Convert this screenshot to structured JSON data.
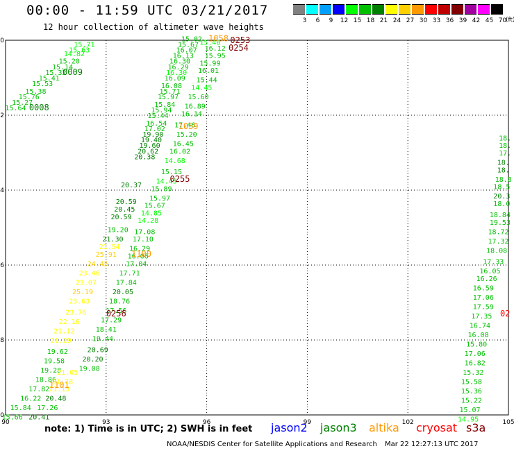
{
  "header": {
    "title": "00:00 - 11:59 UTC 03/21/2017",
    "subtitle": "12 hour collection of altimeter wave heights"
  },
  "color_scale": {
    "unit": "(ft)",
    "bins": [
      {
        "label": "3",
        "color": "#808080"
      },
      {
        "label": "6",
        "color": "#00ffff"
      },
      {
        "label": "9",
        "color": "#00a0ff"
      },
      {
        "label": "12",
        "color": "#0000ff"
      },
      {
        "label": "15",
        "color": "#00ff00"
      },
      {
        "label": "18",
        "color": "#00c000"
      },
      {
        "label": "21",
        "color": "#008000"
      },
      {
        "label": "24",
        "color": "#ffff00"
      },
      {
        "label": "27",
        "color": "#ffd000"
      },
      {
        "label": "30",
        "color": "#ff9900"
      },
      {
        "label": "33",
        "color": "#ff0000"
      },
      {
        "label": "36",
        "color": "#c00000"
      },
      {
        "label": "39",
        "color": "#800000"
      },
      {
        "label": "42",
        "color": "#a000a0"
      },
      {
        "label": "45",
        "color": "#ff00ff"
      },
      {
        "label": "70",
        "color": "#000000"
      }
    ]
  },
  "footer": {
    "note": "note:  1) Time is in UTC; 2) SWH is in feet",
    "credit": "NOAA/NESDIS Center for Satellite Applications and Research",
    "timestamp": "Mar 22 12:27:13 UTC 2017",
    "legend": [
      {
        "name": "jason2",
        "color": "#0000ff"
      },
      {
        "name": "jason3",
        "color": "#008000"
      },
      {
        "name": "altika",
        "color": "#ff9900"
      },
      {
        "name": "cryosat",
        "color": "#ff0000"
      },
      {
        "name": "s3a",
        "color": "#800000"
      }
    ]
  },
  "chart_data": {
    "type": "scatter",
    "xlim": [
      90,
      105
    ],
    "ylim": [
      -60,
      -50
    ],
    "x_ticks": [
      "90",
      "93",
      "96",
      "99",
      "102",
      "105"
    ],
    "y_ticks": [
      "-50",
      "-52",
      "-54",
      "-56",
      "-58",
      "-60"
    ],
    "grid": true,
    "pass_labels": [
      {
        "text": "0009",
        "x": 92.0,
        "y": -50.85,
        "color": "#008000"
      },
      {
        "text": "0008",
        "x": 91.0,
        "y": -51.8,
        "color": "#008000"
      },
      {
        "text": "1058",
        "x": 96.35,
        "y": -49.95,
        "color": "#ff9900"
      },
      {
        "text": "0253",
        "x": 97.0,
        "y": -50.0,
        "color": "#800000"
      },
      {
        "text": "0254",
        "x": 96.95,
        "y": -50.2,
        "color": "#800000"
      },
      {
        "text": "1059",
        "x": 95.45,
        "y": -52.3,
        "color": "#ff9900"
      },
      {
        "text": "0255",
        "x": 95.2,
        "y": -53.7,
        "color": "#800000"
      },
      {
        "text": "1100",
        "x": 94.05,
        "y": -55.7,
        "color": "#ff9900"
      },
      {
        "text": "0256",
        "x": 93.3,
        "y": -57.3,
        "color": "#800000"
      },
      {
        "text": "1101",
        "x": 91.6,
        "y": -59.2,
        "color": "#ff9900"
      },
      {
        "text": "02",
        "x": 104.9,
        "y": -57.3,
        "color": "#ff0000"
      }
    ],
    "points": [
      {
        "x": 92.35,
        "y": -50.1,
        "label": "15.71",
        "color": "#00ff00"
      },
      {
        "x": 92.2,
        "y": -50.25,
        "label": "15.63",
        "color": "#00ff00"
      },
      {
        "x": 92.05,
        "y": -50.35,
        "label": "14.82",
        "color": "#00ff00"
      },
      {
        "x": 91.9,
        "y": -50.55,
        "label": "15.20",
        "color": "#00c000"
      },
      {
        "x": 91.7,
        "y": -50.7,
        "label": "15.14",
        "color": "#00c000"
      },
      {
        "x": 91.5,
        "y": -50.85,
        "label": "15.32",
        "color": "#00c000"
      },
      {
        "x": 91.3,
        "y": -51.0,
        "label": "15.41",
        "color": "#00c000"
      },
      {
        "x": 91.1,
        "y": -51.15,
        "label": "15.53",
        "color": "#00c000"
      },
      {
        "x": 90.9,
        "y": -51.35,
        "label": "15.38",
        "color": "#00c000"
      },
      {
        "x": 90.7,
        "y": -51.5,
        "label": "15.76",
        "color": "#00c000"
      },
      {
        "x": 90.5,
        "y": -51.65,
        "label": "15.27",
        "color": "#00c000"
      },
      {
        "x": 90.3,
        "y": -51.8,
        "label": "15.64",
        "color": "#00c000"
      },
      {
        "x": 95.55,
        "y": -49.95,
        "label": "15.02",
        "color": "#00c000"
      },
      {
        "x": 95.45,
        "y": -50.1,
        "label": "15.67",
        "color": "#00c000"
      },
      {
        "x": 95.4,
        "y": -50.25,
        "label": "16.07",
        "color": "#00c000"
      },
      {
        "x": 95.3,
        "y": -50.4,
        "label": "16.13",
        "color": "#00c000"
      },
      {
        "x": 95.2,
        "y": -50.55,
        "label": "16.30",
        "color": "#00c000"
      },
      {
        "x": 95.15,
        "y": -50.7,
        "label": "16.29",
        "color": "#00c000"
      },
      {
        "x": 95.1,
        "y": -50.85,
        "label": "16.30",
        "color": "#00ff00"
      },
      {
        "x": 95.05,
        "y": -51.0,
        "label": "16.09",
        "color": "#00c000"
      },
      {
        "x": 94.95,
        "y": -51.2,
        "label": "16.08",
        "color": "#00c000"
      },
      {
        "x": 94.9,
        "y": -51.35,
        "label": "15.71",
        "color": "#00c000"
      },
      {
        "x": 94.85,
        "y": -51.5,
        "label": "15.97",
        "color": "#00c000"
      },
      {
        "x": 94.75,
        "y": -51.7,
        "label": "15.84",
        "color": "#00c000"
      },
      {
        "x": 94.65,
        "y": -51.85,
        "label": "15.94",
        "color": "#00c000"
      },
      {
        "x": 96.1,
        "y": -50.05,
        "label": "15.48",
        "color": "#00ff00"
      },
      {
        "x": 96.25,
        "y": -50.2,
        "label": "16.12",
        "color": "#00c000"
      },
      {
        "x": 96.25,
        "y": -50.4,
        "label": "15.95",
        "color": "#00c000"
      },
      {
        "x": 96.1,
        "y": -50.6,
        "label": "15.99",
        "color": "#00c000"
      },
      {
        "x": 96.05,
        "y": -50.8,
        "label": "16.01",
        "color": "#00c000"
      },
      {
        "x": 96.0,
        "y": -51.05,
        "label": "15.44",
        "color": "#00c000"
      },
      {
        "x": 95.85,
        "y": -51.25,
        "label": "14.45",
        "color": "#00ff00"
      },
      {
        "x": 95.75,
        "y": -51.5,
        "label": "15.60",
        "color": "#00c000"
      },
      {
        "x": 95.65,
        "y": -51.75,
        "label": "16.89",
        "color": "#00c000"
      },
      {
        "x": 95.55,
        "y": -51.95,
        "label": "16.14",
        "color": "#00c000"
      },
      {
        "x": 94.55,
        "y": -52.0,
        "label": "15.44",
        "color": "#00c000"
      },
      {
        "x": 94.5,
        "y": -52.2,
        "label": "16.54",
        "color": "#00c000"
      },
      {
        "x": 94.45,
        "y": -52.35,
        "label": "17.02",
        "color": "#00c000"
      },
      {
        "x": 94.4,
        "y": -52.5,
        "label": "19.90",
        "color": "#008000"
      },
      {
        "x": 94.35,
        "y": -52.65,
        "label": "19.40",
        "color": "#008000"
      },
      {
        "x": 94.3,
        "y": -52.8,
        "label": "19.60",
        "color": "#008000"
      },
      {
        "x": 94.25,
        "y": -52.95,
        "label": "20.62",
        "color": "#008000"
      },
      {
        "x": 94.15,
        "y": -53.1,
        "label": "20.38",
        "color": "#008000"
      },
      {
        "x": 95.35,
        "y": -52.25,
        "label": "17.46",
        "color": "#00c000"
      },
      {
        "x": 95.4,
        "y": -52.5,
        "label": "15.20",
        "color": "#00c000"
      },
      {
        "x": 95.3,
        "y": -52.75,
        "label": "16.45",
        "color": "#00c000"
      },
      {
        "x": 95.2,
        "y": -52.95,
        "label": "16.02",
        "color": "#00c000"
      },
      {
        "x": 95.05,
        "y": -53.2,
        "label": "14.68",
        "color": "#00ff00"
      },
      {
        "x": 94.95,
        "y": -53.5,
        "label": "15.15",
        "color": "#00c000"
      },
      {
        "x": 94.8,
        "y": -53.75,
        "label": "14.45",
        "color": "#00ff00"
      },
      {
        "x": 94.65,
        "y": -53.95,
        "label": "15.89",
        "color": "#00c000"
      },
      {
        "x": 94.6,
        "y": -54.2,
        "label": "15.97",
        "color": "#00c000"
      },
      {
        "x": 94.45,
        "y": -54.4,
        "label": "15.67",
        "color": "#00c000"
      },
      {
        "x": 94.35,
        "y": -54.6,
        "label": "14.85",
        "color": "#00ff00"
      },
      {
        "x": 94.25,
        "y": -54.8,
        "label": "14.28",
        "color": "#00ff00"
      },
      {
        "x": 94.15,
        "y": -55.1,
        "label": "17.08",
        "color": "#00c000"
      },
      {
        "x": 94.1,
        "y": -55.3,
        "label": "17.10",
        "color": "#00c000"
      },
      {
        "x": 94.0,
        "y": -55.55,
        "label": "16.29",
        "color": "#00c000"
      },
      {
        "x": 93.95,
        "y": -55.75,
        "label": "16.06",
        "color": "#00c000"
      },
      {
        "x": 93.9,
        "y": -55.95,
        "label": "17.04",
        "color": "#00c000"
      },
      {
        "x": 93.7,
        "y": -56.2,
        "label": "17.71",
        "color": "#00c000"
      },
      {
        "x": 93.6,
        "y": -56.45,
        "label": "17.84",
        "color": "#00c000"
      },
      {
        "x": 93.5,
        "y": -56.7,
        "label": "20.05",
        "color": "#008000"
      },
      {
        "x": 93.4,
        "y": -56.95,
        "label": "18.76",
        "color": "#00c000"
      },
      {
        "x": 93.3,
        "y": -57.2,
        "label": "17.56",
        "color": "#00c000"
      },
      {
        "x": 93.15,
        "y": -57.45,
        "label": "17.29",
        "color": "#00c000"
      },
      {
        "x": 93.0,
        "y": -57.7,
        "label": "18.41",
        "color": "#00c000"
      },
      {
        "x": 92.9,
        "y": -57.95,
        "label": "19.44",
        "color": "#00c000"
      },
      {
        "x": 92.75,
        "y": -58.25,
        "label": "20.69",
        "color": "#008000"
      },
      {
        "x": 92.6,
        "y": -58.5,
        "label": "20.20",
        "color": "#008000"
      },
      {
        "x": 92.5,
        "y": -58.75,
        "label": "19.08",
        "color": "#00c000"
      },
      {
        "x": 93.75,
        "y": -53.85,
        "label": "20.37",
        "color": "#008000"
      },
      {
        "x": 93.6,
        "y": -54.3,
        "label": "20.59",
        "color": "#008000"
      },
      {
        "x": 93.55,
        "y": -54.5,
        "label": "20.45",
        "color": "#008000"
      },
      {
        "x": 93.45,
        "y": -54.7,
        "label": "20.59",
        "color": "#008000"
      },
      {
        "x": 93.35,
        "y": -55.05,
        "label": "19.20",
        "color": "#00c000"
      },
      {
        "x": 93.2,
        "y": -55.3,
        "label": "21.30",
        "color": "#008000"
      },
      {
        "x": 93.1,
        "y": -55.5,
        "label": "21.54",
        "color": "#ffff00"
      },
      {
        "x": 93.0,
        "y": -55.7,
        "label": "25.91",
        "color": "#ffd000"
      },
      {
        "x": 92.75,
        "y": -55.95,
        "label": "24.45",
        "color": "#ffd000"
      },
      {
        "x": 92.5,
        "y": -56.2,
        "label": "23.46",
        "color": "#ffff00"
      },
      {
        "x": 92.4,
        "y": -56.45,
        "label": "23.07",
        "color": "#ffff00"
      },
      {
        "x": 92.3,
        "y": -56.7,
        "label": "25.19",
        "color": "#ffd000"
      },
      {
        "x": 92.2,
        "y": -56.95,
        "label": "23.63",
        "color": "#ffff00"
      },
      {
        "x": 92.1,
        "y": -57.25,
        "label": "23.76",
        "color": "#ffff00"
      },
      {
        "x": 91.9,
        "y": -57.5,
        "label": "22.16",
        "color": "#ffff00"
      },
      {
        "x": 91.75,
        "y": -57.75,
        "label": "21.12",
        "color": "#ffff00"
      },
      {
        "x": 91.65,
        "y": -58.0,
        "label": "21.29",
        "color": "#ffff00"
      },
      {
        "x": 91.55,
        "y": -58.3,
        "label": "19.62",
        "color": "#00c000"
      },
      {
        "x": 91.45,
        "y": -58.55,
        "label": "19.58",
        "color": "#00c000"
      },
      {
        "x": 91.35,
        "y": -58.8,
        "label": "19.28",
        "color": "#00c000"
      },
      {
        "x": 91.2,
        "y": -59.05,
        "label": "18.86",
        "color": "#00c000"
      },
      {
        "x": 91.0,
        "y": -59.3,
        "label": "17.82",
        "color": "#00c000"
      },
      {
        "x": 90.75,
        "y": -59.55,
        "label": "16.22",
        "color": "#00c000"
      },
      {
        "x": 90.45,
        "y": -59.8,
        "label": "15.84",
        "color": "#00c000"
      },
      {
        "x": 90.2,
        "y": -60.05,
        "label": "15.66",
        "color": "#00c000"
      },
      {
        "x": 91.85,
        "y": -58.85,
        "label": "21.05",
        "color": "#ffff00"
      },
      {
        "x": 91.7,
        "y": -59.1,
        "label": "21.78",
        "color": "#ffff00"
      },
      {
        "x": 91.6,
        "y": -59.3,
        "label": "21.13",
        "color": "#ffff00"
      },
      {
        "x": 91.5,
        "y": -59.55,
        "label": "20.48",
        "color": "#008000"
      },
      {
        "x": 91.25,
        "y": -59.8,
        "label": "17.26",
        "color": "#00c000"
      },
      {
        "x": 91.0,
        "y": -60.05,
        "label": "20.41",
        "color": "#008000"
      },
      {
        "x": 104.9,
        "y": -52.6,
        "label": "18.",
        "color": "#00c000"
      },
      {
        "x": 104.9,
        "y": -52.8,
        "label": "18.",
        "color": "#00c000"
      },
      {
        "x": 104.9,
        "y": -53.0,
        "label": "17.",
        "color": "#00c000"
      },
      {
        "x": 104.85,
        "y": -53.25,
        "label": "18.",
        "color": "#008000"
      },
      {
        "x": 104.85,
        "y": -53.45,
        "label": "18.",
        "color": "#008000"
      },
      {
        "x": 104.85,
        "y": -53.7,
        "label": "18.8",
        "color": "#00c000"
      },
      {
        "x": 104.8,
        "y": -53.9,
        "label": "18.5",
        "color": "#00c000"
      },
      {
        "x": 104.8,
        "y": -54.15,
        "label": "20.3",
        "color": "#008000"
      },
      {
        "x": 104.8,
        "y": -54.35,
        "label": "18.0",
        "color": "#00c000"
      },
      {
        "x": 104.75,
        "y": -54.65,
        "label": "18.84",
        "color": "#00c000"
      },
      {
        "x": 104.75,
        "y": -54.85,
        "label": "19.53",
        "color": "#00c000"
      },
      {
        "x": 104.7,
        "y": -55.1,
        "label": "18.72",
        "color": "#00c000"
      },
      {
        "x": 104.7,
        "y": -55.35,
        "label": "17.32",
        "color": "#00c000"
      },
      {
        "x": 104.65,
        "y": -55.6,
        "label": "18.08",
        "color": "#00c000"
      },
      {
        "x": 104.55,
        "y": -55.9,
        "label": "17.33",
        "color": "#00c000"
      },
      {
        "x": 104.45,
        "y": -56.15,
        "label": "16.05",
        "color": "#00c000"
      },
      {
        "x": 104.35,
        "y": -56.35,
        "label": "16.26",
        "color": "#00c000"
      },
      {
        "x": 104.25,
        "y": -56.6,
        "label": "16.59",
        "color": "#00c000"
      },
      {
        "x": 104.25,
        "y": -56.85,
        "label": "17.06",
        "color": "#00c000"
      },
      {
        "x": 104.25,
        "y": -57.1,
        "label": "17.59",
        "color": "#00c000"
      },
      {
        "x": 104.2,
        "y": -57.35,
        "label": "17.35",
        "color": "#00c000"
      },
      {
        "x": 104.15,
        "y": -57.6,
        "label": "16.74",
        "color": "#00c000"
      },
      {
        "x": 104.1,
        "y": -57.85,
        "label": "16.08",
        "color": "#00c000"
      },
      {
        "x": 104.05,
        "y": -58.1,
        "label": "15.80",
        "color": "#00c000"
      },
      {
        "x": 104.0,
        "y": -58.35,
        "label": "17.06",
        "color": "#00c000"
      },
      {
        "x": 104.0,
        "y": -58.6,
        "label": "16.82",
        "color": "#00c000"
      },
      {
        "x": 103.95,
        "y": -58.85,
        "label": "15.32",
        "color": "#00c000"
      },
      {
        "x": 103.9,
        "y": -59.1,
        "label": "15.58",
        "color": "#00c000"
      },
      {
        "x": 103.9,
        "y": -59.35,
        "label": "15.36",
        "color": "#00c000"
      },
      {
        "x": 103.9,
        "y": -59.6,
        "label": "15.22",
        "color": "#00c000"
      },
      {
        "x": 103.85,
        "y": -59.85,
        "label": "15.07",
        "color": "#00c000"
      },
      {
        "x": 103.8,
        "y": -60.1,
        "label": "14.95",
        "color": "#00ff00"
      }
    ]
  }
}
